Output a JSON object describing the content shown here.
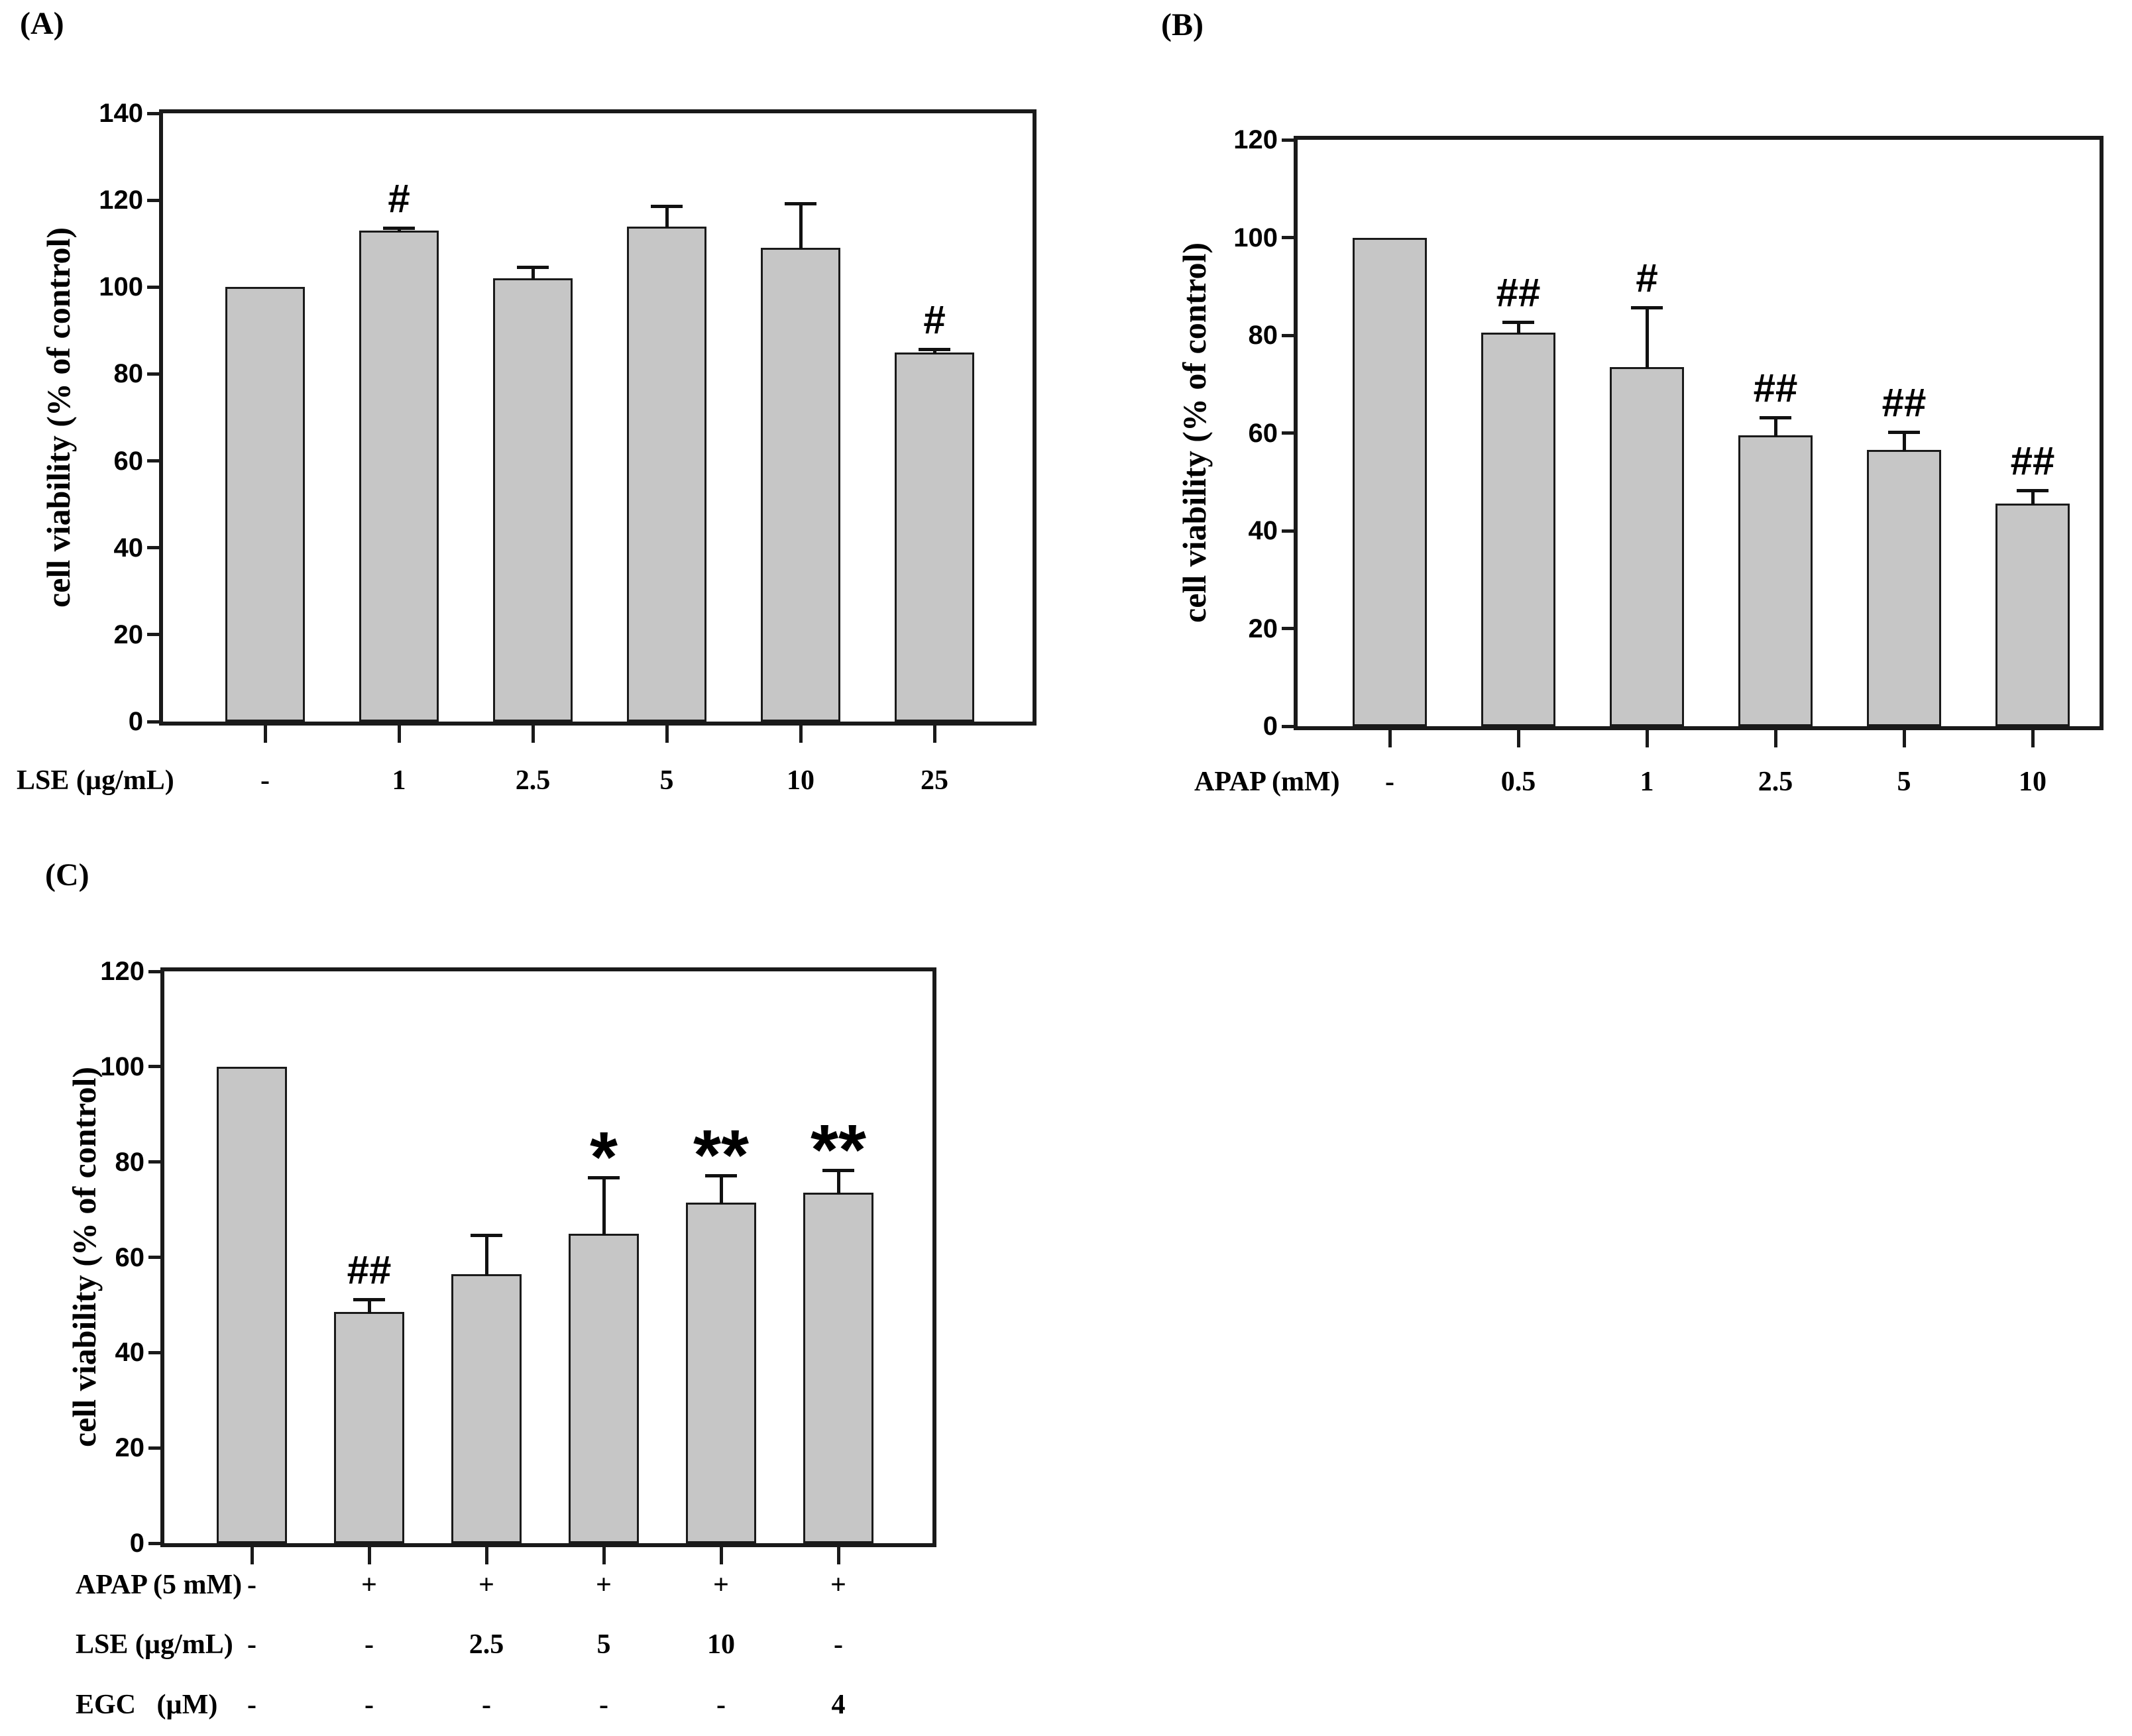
{
  "figure": {
    "background": "#ffffff",
    "text_color": "#000000",
    "bar_fill": "#c6c6c6",
    "bar_border": "#1a1a1a",
    "axis_color": "#1a1a1a"
  },
  "chart_data": [
    {
      "type": "bar",
      "panel": "(A)",
      "title": "",
      "ylabel": "cell viability (% of control)",
      "xlabel": "LSE (µg/mL)",
      "ylim": [
        0,
        140
      ],
      "ytick_step": 20,
      "grid": false,
      "legend": "none",
      "categories": [
        "-",
        "1",
        "2.5",
        "5",
        "10",
        "25"
      ],
      "values": [
        100,
        113,
        102,
        114,
        109,
        85
      ],
      "errors_plus": [
        0,
        1,
        3,
        5,
        10.5,
        1
      ],
      "significance": [
        "",
        "#",
        "",
        "",
        "",
        "#"
      ]
    },
    {
      "type": "bar",
      "panel": "(B)",
      "title": "",
      "ylabel": "cell viability (% of control)",
      "xlabel": "APAP (mM)",
      "ylim": [
        0,
        120
      ],
      "ytick_step": 20,
      "grid": false,
      "legend": "none",
      "categories": [
        "-",
        "0.5",
        "1",
        "2.5",
        "5",
        "10"
      ],
      "values": [
        100,
        80.5,
        73.5,
        59.5,
        56.5,
        45.5
      ],
      "errors_plus": [
        0,
        2.5,
        12.5,
        4,
        4,
        3
      ],
      "significance": [
        "",
        "##",
        "#",
        "##",
        "##",
        "##"
      ]
    },
    {
      "type": "bar",
      "panel": "(C)",
      "title": "",
      "ylabel": "cell viability (% of control)",
      "ylim": [
        0,
        120
      ],
      "ytick_step": 20,
      "grid": false,
      "legend": "none",
      "categories": [
        "control",
        "APAP",
        "APAP+LSE 2.5",
        "APAP+LSE 5",
        "APAP+LSE 10",
        "APAP+EGC 4"
      ],
      "x_rows": [
        {
          "label": "APAP (5 mM)",
          "values": [
            "-",
            "+",
            "+",
            "+",
            "+",
            "+"
          ]
        },
        {
          "label": "LSE (µg/mL)",
          "values": [
            "-",
            "-",
            "2.5",
            "5",
            "10",
            "-"
          ]
        },
        {
          "label": "EGC   (µM)",
          "values": [
            "-",
            "-",
            "-",
            "-",
            "-",
            "4"
          ]
        }
      ],
      "values": [
        100,
        48.5,
        56.5,
        65,
        71.5,
        73.5
      ],
      "errors_plus": [
        0,
        3,
        8.5,
        12,
        6,
        5
      ],
      "significance": [
        "",
        "##",
        "",
        "*",
        "**",
        "**"
      ]
    }
  ]
}
